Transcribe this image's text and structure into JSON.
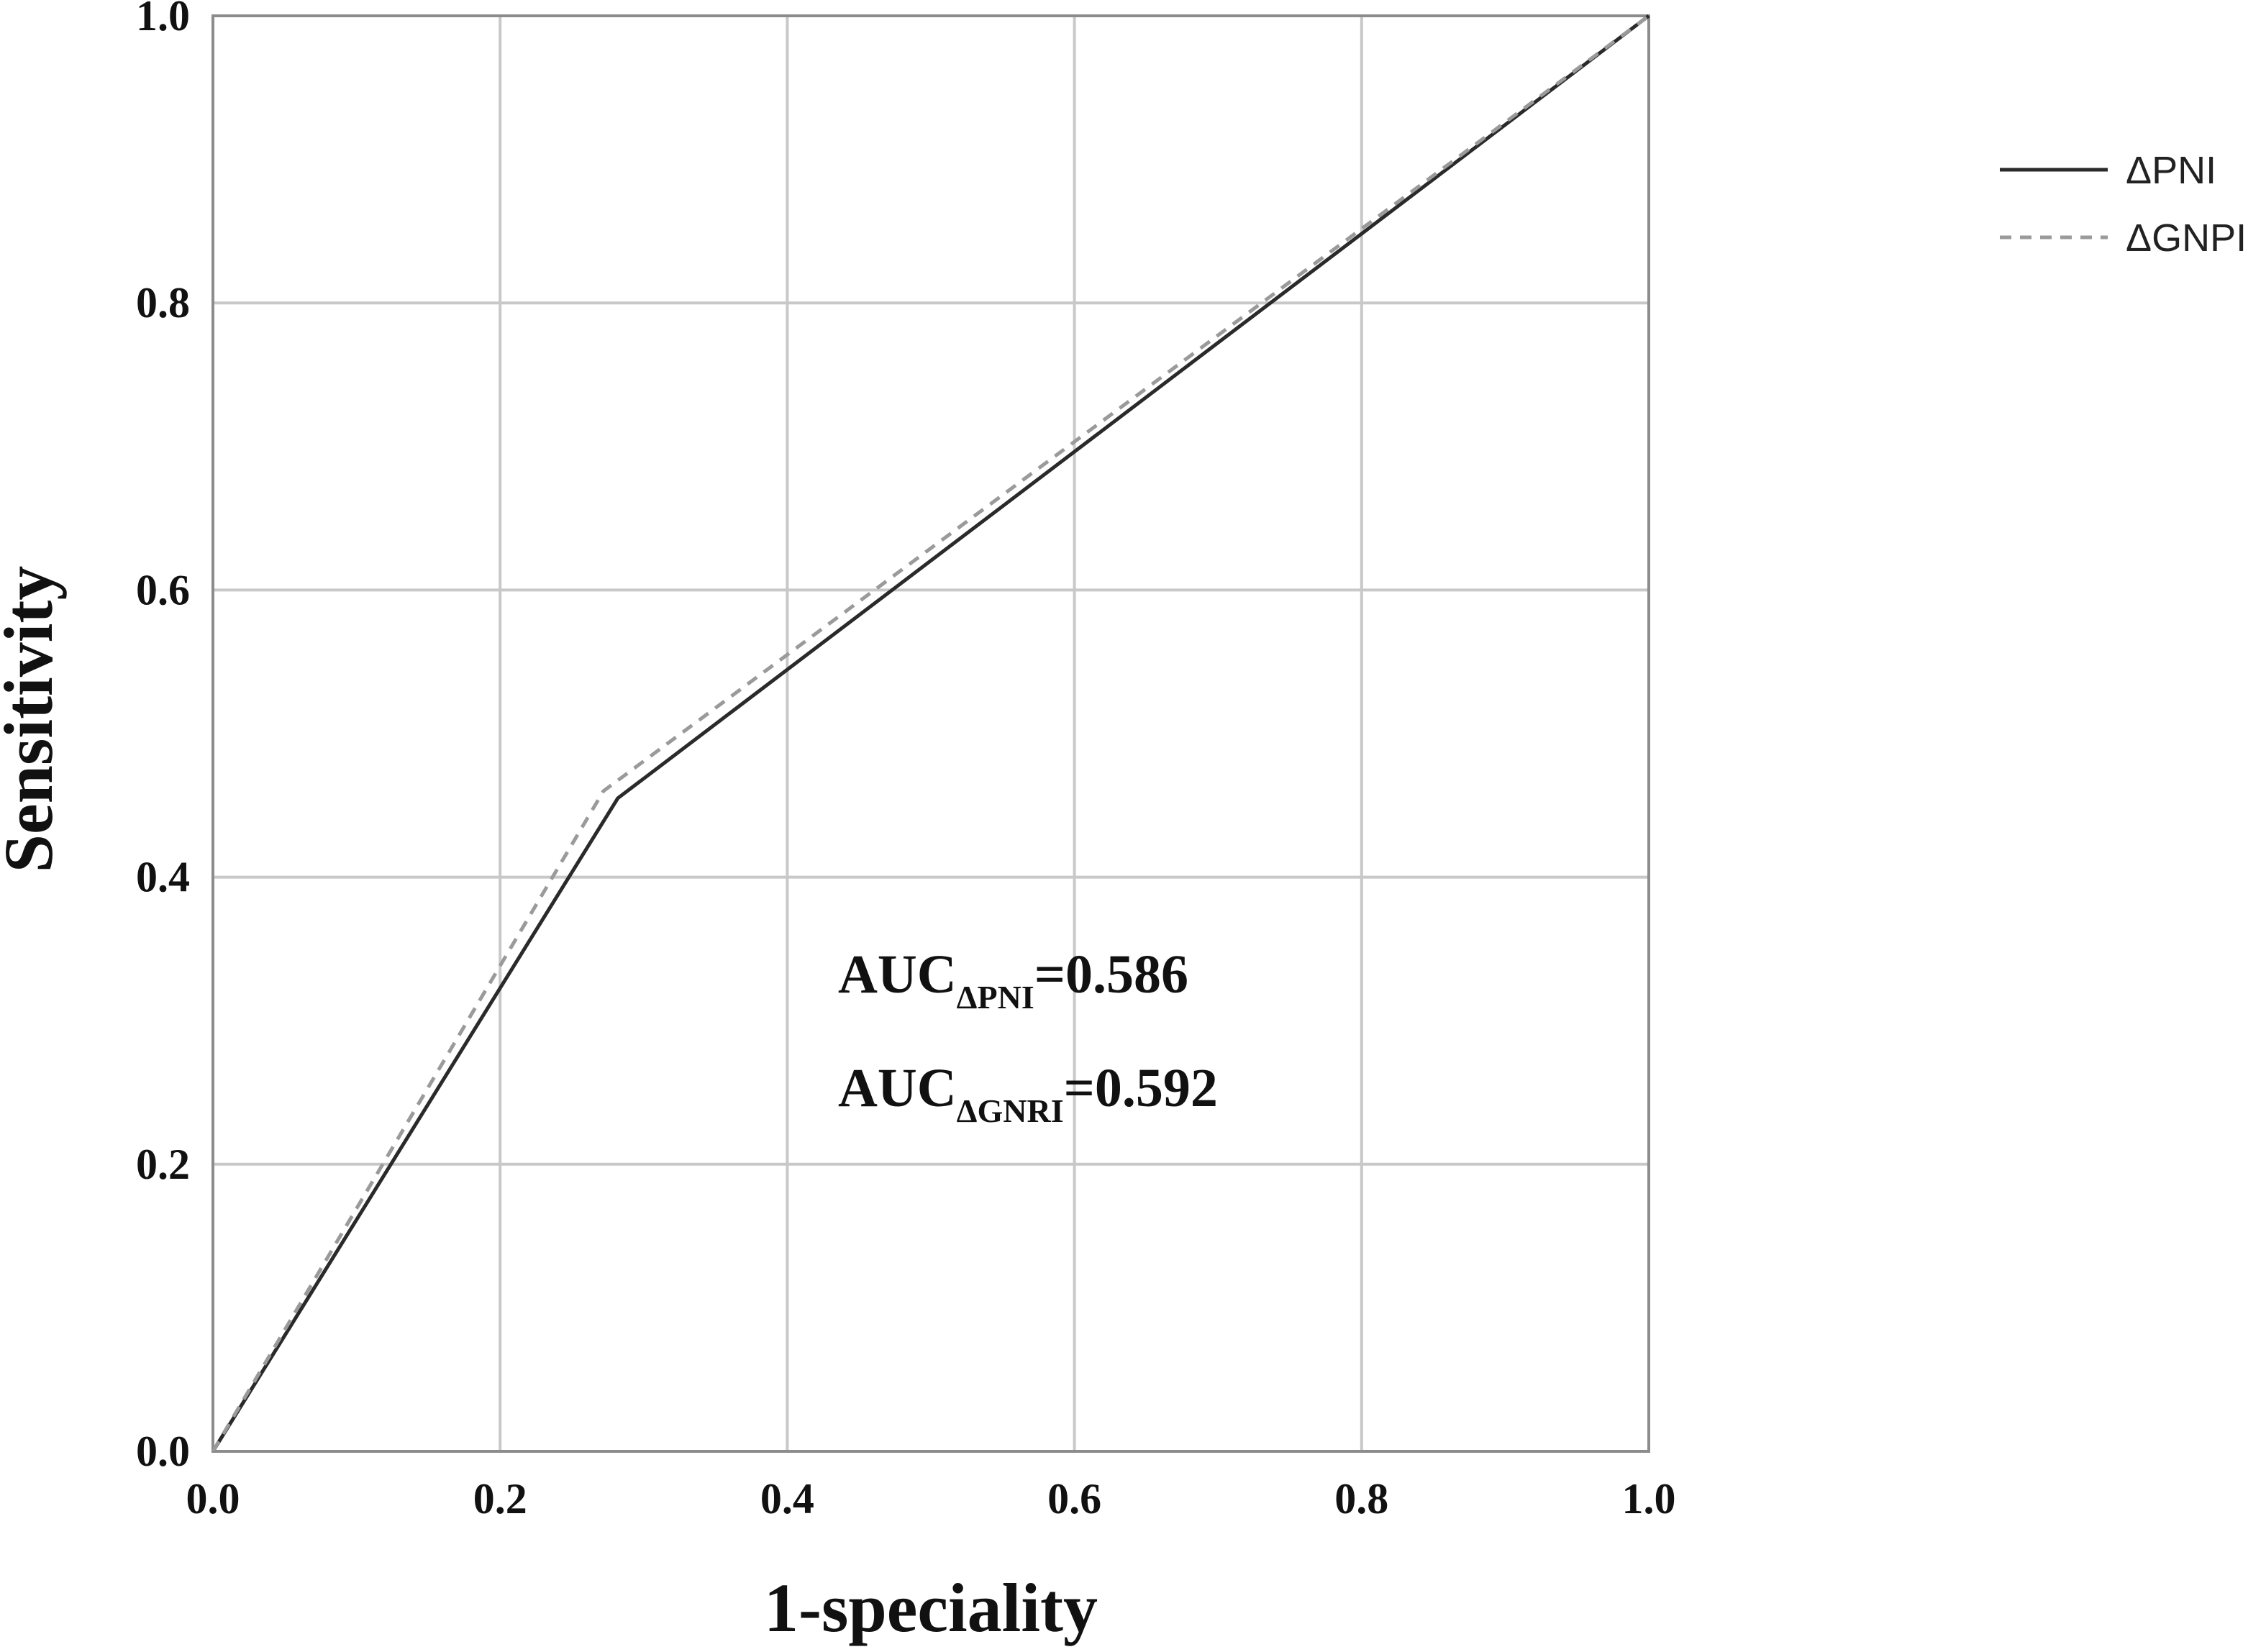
{
  "chart_data": {
    "type": "line",
    "xlabel": "1-speciality",
    "ylabel": "Sensitivity",
    "xlim": [
      0.0,
      1.0
    ],
    "ylim": [
      0.0,
      1.0
    ],
    "x_ticks": [
      "0.0",
      "0.2",
      "0.4",
      "0.6",
      "0.8",
      "1.0"
    ],
    "y_ticks": [
      "0.0",
      "0.2",
      "0.4",
      "0.6",
      "0.8",
      "1.0"
    ],
    "grid": true,
    "legend_position": "top-right, outside plot",
    "series": [
      {
        "name": "ΔPNI",
        "style": "solid",
        "color": "#2a2a2a",
        "x": [
          0.0,
          0.282,
          1.0
        ],
        "y": [
          0.0,
          0.455,
          1.0
        ]
      },
      {
        "name": "ΔGNPI",
        "style": "dashed",
        "color": "#9a9a9a",
        "x": [
          0.0,
          0.272,
          1.0
        ],
        "y": [
          0.0,
          0.46,
          1.0
        ]
      }
    ],
    "annotations": [
      {
        "prefix": "AUC",
        "subscript": "ΔPNI",
        "suffix": "=0.586"
      },
      {
        "prefix": "AUC",
        "subscript": "ΔGNRI",
        "suffix": "=0.592"
      }
    ]
  }
}
